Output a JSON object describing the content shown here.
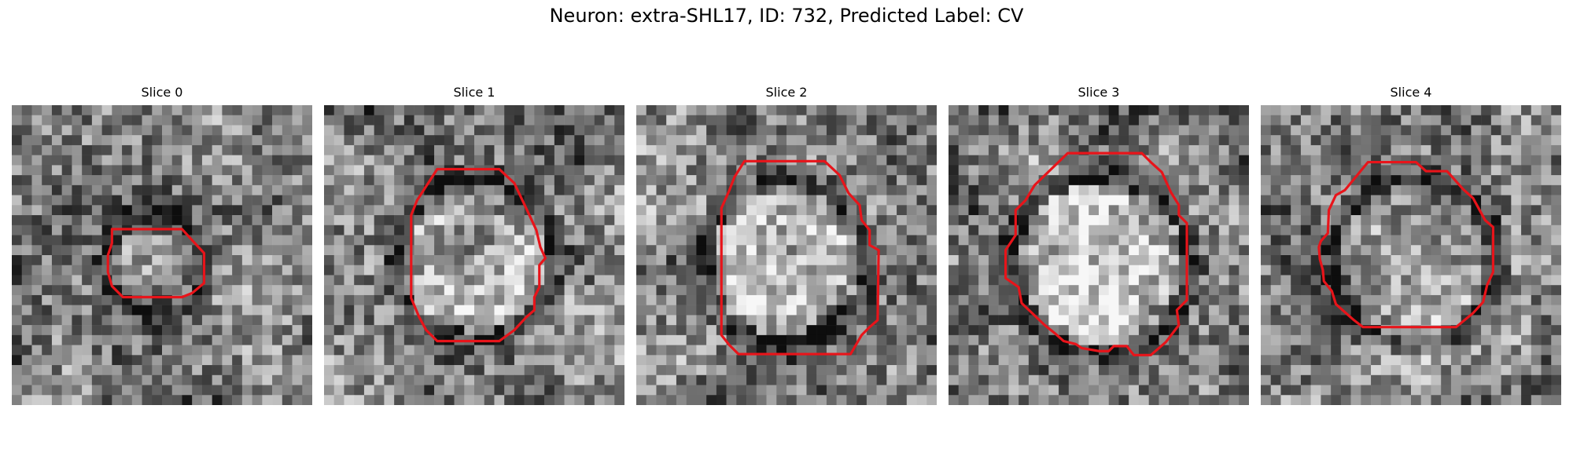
{
  "figure": {
    "title": "Neuron: extra-SHL17, ID: 732, Predicted Label: CV"
  },
  "panels": [
    {
      "title": "Slice 0"
    },
    {
      "title": "Slice 1"
    },
    {
      "title": "Slice 2"
    },
    {
      "title": "Slice 3"
    },
    {
      "title": "Slice 4"
    }
  ],
  "style": {
    "contour_color": "#e8141a",
    "image_colormap": "gray"
  }
}
